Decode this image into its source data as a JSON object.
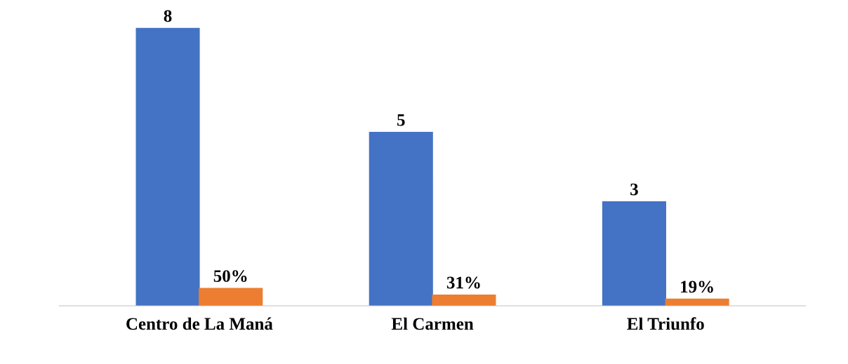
{
  "chart_data": {
    "type": "bar",
    "categories": [
      "Centro de La Maná",
      "El Carmen",
      "El Triunfo"
    ],
    "series": [
      {
        "color": "#4472c4",
        "values": [
          8,
          5,
          3
        ],
        "value_labels": [
          "8",
          "5",
          "3"
        ]
      },
      {
        "color": "#ed7d31",
        "values": [
          0.5,
          0.31,
          0.19
        ],
        "value_labels": [
          "50%",
          "31%",
          "19%"
        ]
      }
    ],
    "grid": false,
    "legend": false
  }
}
